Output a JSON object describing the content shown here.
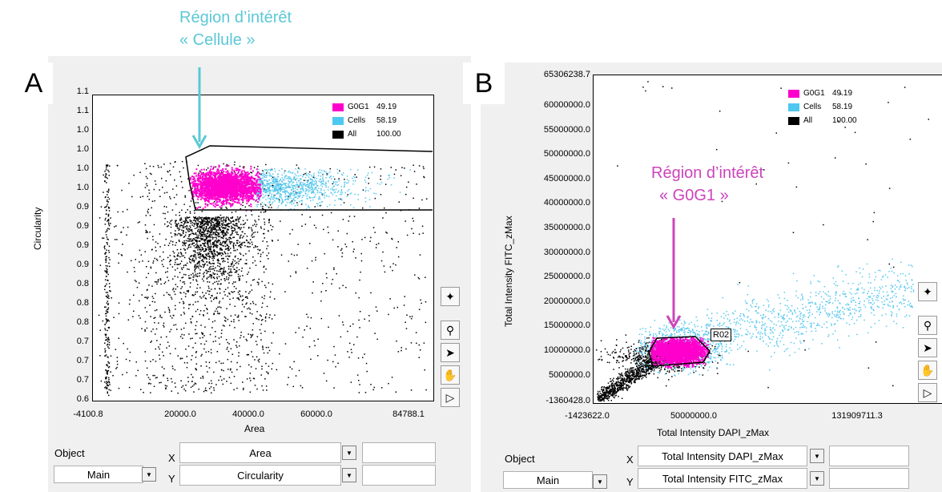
{
  "annotations": {
    "top_line1": "Région d’intérêt",
    "top_line2": "« Cellule »",
    "inner_line1": "Région d’intérêt",
    "inner_line2": "« G0G1 »",
    "region_label": "R02",
    "top_color": "#5bc8d6",
    "inner_color": "#cc44bb"
  },
  "panel_a": {
    "letter": "A",
    "object_label": "Object",
    "object_value": "Main",
    "x_label": "X",
    "y_label": "Y",
    "x_value": "Area",
    "y_value": "Circularity"
  },
  "panel_b": {
    "letter": "B",
    "object_label": "Object",
    "object_value": "Main",
    "x_label": "X",
    "y_label": "Y",
    "x_value": "Total Intensity DAPI_zMax",
    "y_value": "Total Intensity FITC_zMax"
  },
  "toolbar": [
    "magic-wand-icon",
    "zoom-icon",
    "pointer-icon",
    "hand-icon",
    "region-tag-icon"
  ],
  "chart_data": [
    {
      "type": "scatter",
      "xlabel": "Area",
      "ylabel": "Circularity",
      "x_tick_labels": [
        "-4100.8",
        "20000.0",
        "40000.0",
        "60000.0",
        "84788.1"
      ],
      "y_tick_labels": [
        "1.1",
        "1.1",
        "1.0",
        "1.0",
        "1.0",
        "1.0",
        "0.9",
        "0.9",
        "0.9",
        "0.9",
        "0.8",
        "0.8",
        "0.8",
        "0.7",
        "0.7",
        "0.7",
        "0.6"
      ],
      "xlim": [
        -4100.8,
        84788.1
      ],
      "ylim": [
        0.6,
        1.1
      ],
      "legend": [
        {
          "name": "G0G1",
          "value": "49.19",
          "color": "#ff00cc"
        },
        {
          "name": "Cells",
          "value": "58.19",
          "color": "#4ec8f0"
        },
        {
          "name": "All",
          "value": "100.00",
          "color": "#000000"
        }
      ],
      "legend_position": "top-right",
      "gate": "Cells"
    },
    {
      "type": "scatter",
      "xlabel": "Total Intensity DAPI_zMax",
      "ylabel": "Total Intensity FITC_zMax",
      "x_tick_labels": [
        "-1423622.0",
        "50000000.0",
        "131909711.3"
      ],
      "y_tick_labels": [
        "65306238.7",
        "60000000.0",
        "55000000.0",
        "50000000.0",
        "45000000.0",
        "40000000.0",
        "35000000.0",
        "30000000.0",
        "25000000.0",
        "20000000.0",
        "15000000.0",
        "10000000.0",
        "5000000.0",
        "-1360428.0"
      ],
      "xlim": [
        -1423622.0,
        131909711.3
      ],
      "ylim": [
        -1360428.0,
        65306238.7
      ],
      "legend": [
        {
          "name": "G0G1",
          "value": "49.19",
          "color": "#ff00cc"
        },
        {
          "name": "Cells",
          "value": "58.19",
          "color": "#4ec8f0"
        },
        {
          "name": "All",
          "value": "100.00",
          "color": "#000000"
        }
      ],
      "legend_position": "top-right",
      "gate": "R02"
    }
  ]
}
